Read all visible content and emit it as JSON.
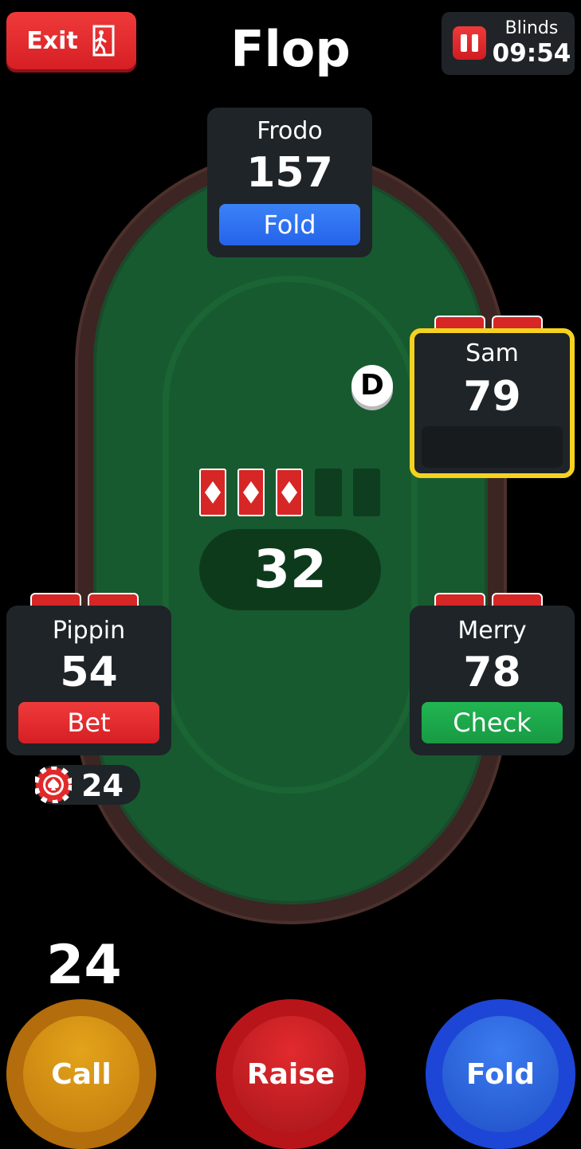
{
  "header": {
    "exit_label": "Exit",
    "exit_icon": "exit-door-icon",
    "stage_title": "Flop",
    "blinds_label": "Blinds",
    "blinds_timer": "09:54",
    "pause_icon": "pause-icon"
  },
  "players": {
    "frodo": {
      "name": "Frodo",
      "chips": "157",
      "action": "Fold",
      "action_color": "#2563eb"
    },
    "sam": {
      "name": "Sam",
      "chips": "79",
      "action": "",
      "highlight_color": "#f5d21f"
    },
    "pippin": {
      "name": "Pippin",
      "chips": "54",
      "action": "Bet",
      "action_color": "#d61f24"
    },
    "merry": {
      "name": "Merry",
      "chips": "78",
      "action": "Check",
      "action_color": "#179a43"
    }
  },
  "board": {
    "cards": [
      "diamond",
      "diamond",
      "diamond"
    ],
    "empty_slots": 2
  },
  "pot": "32",
  "dealer_button": "D",
  "pippin_bet": "24",
  "to_call_amount": "24",
  "actions": {
    "call_label": "Call",
    "raise_label": "Raise",
    "fold_label": "Fold"
  }
}
